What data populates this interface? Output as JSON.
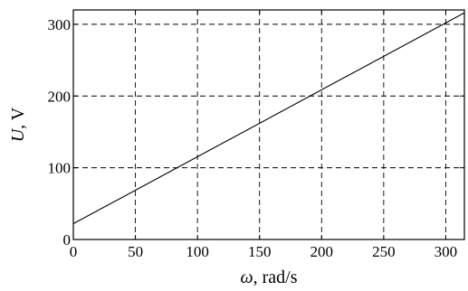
{
  "chart_data": {
    "type": "line",
    "title": "",
    "xlabel_symbol": "ω",
    "xlabel_unit": ", rad/s",
    "ylabel_symbol": "U",
    "ylabel_unit": ", V",
    "xlim": [
      0,
      315
    ],
    "ylim": [
      0,
      320
    ],
    "xticks": [
      0,
      50,
      100,
      150,
      200,
      250,
      300
    ],
    "yticks": [
      0,
      100,
      200,
      300
    ],
    "grid": true,
    "series": [
      {
        "x": [
          0,
          315
        ],
        "y": [
          22,
          316
        ]
      }
    ]
  }
}
